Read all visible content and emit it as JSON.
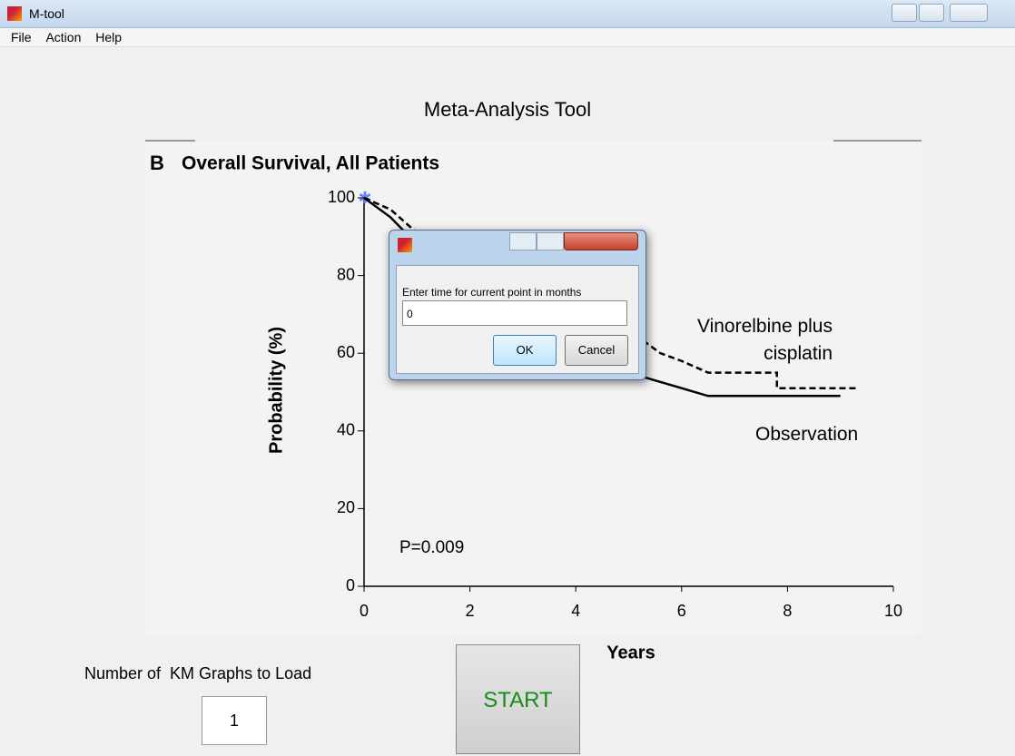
{
  "window": {
    "title": "M-tool"
  },
  "menu": [
    "File",
    "Action",
    "Help"
  ],
  "app_title": "Meta-Analysis Tool",
  "chart_data": {
    "type": "line",
    "panel": "B",
    "title": "Overall Survival, All Patients",
    "x_label": "Years",
    "y_label": "Probability (%)",
    "xlim": [
      0,
      10
    ],
    "xticks": [
      0,
      2,
      4,
      6,
      8,
      10
    ],
    "ylim": [
      0,
      100
    ],
    "yticks": [
      0,
      20,
      40,
      60,
      80,
      100
    ],
    "series": [
      {
        "name": "Vinorelbine plus cisplatin",
        "color": "#000000",
        "style": "dashed",
        "x": [
          0,
          0.5,
          1,
          1.5,
          2,
          3,
          4,
          5,
          5.3,
          5.6,
          6,
          6.5,
          7.8,
          7.8,
          9.3
        ],
        "values": [
          100,
          97,
          91,
          85,
          80,
          73,
          68,
          66,
          63,
          60,
          58,
          55,
          55,
          51,
          51
        ]
      },
      {
        "name": "Observation",
        "color": "#000000",
        "style": "solid",
        "x": [
          0,
          0.5,
          1,
          2,
          3,
          4,
          4.5,
          5,
          5.5,
          6,
          6.5,
          9
        ],
        "values": [
          100,
          95,
          88,
          76,
          66,
          60,
          57,
          55,
          53,
          51,
          49,
          49
        ]
      }
    ],
    "annotation": "P=0.009"
  },
  "dialog": {
    "prompt": "Enter time for current point in months",
    "input": "0",
    "buttons": [
      "OK",
      "Cancel"
    ]
  },
  "load_label": "Number of  KM Graphs to Load",
  "load_count": "1",
  "start": "START"
}
